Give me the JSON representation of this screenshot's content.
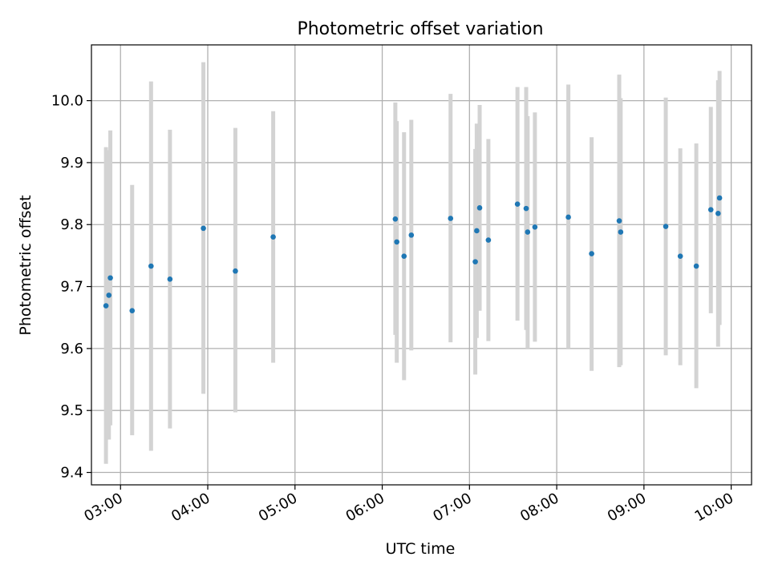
{
  "chart_data": {
    "type": "scatter",
    "title": "Photometric offset variation",
    "xlabel": "UTC time",
    "ylabel": "Photometric offset",
    "xlim": [
      "02:40",
      "10:14"
    ],
    "ylim": [
      9.38,
      10.09
    ],
    "x_ticks": [
      "03:00",
      "04:00",
      "05:00",
      "06:00",
      "07:00",
      "08:00",
      "09:00",
      "10:00"
    ],
    "y_ticks": [
      "9.4",
      "9.5",
      "9.6",
      "9.7",
      "9.8",
      "9.9",
      "10.0"
    ],
    "grid": true,
    "colors": {
      "point": "#1f77b4",
      "errorbar": "#d3d3d3",
      "grid": "#b0b0b0"
    },
    "points": [
      {
        "x": "02:50",
        "y": 9.669,
        "ylo": 9.414,
        "yhi": 9.925
      },
      {
        "x": "02:52",
        "y": 9.686,
        "ylo": 9.453,
        "yhi": 9.92
      },
      {
        "x": "02:53",
        "y": 9.714,
        "ylo": 9.476,
        "yhi": 9.952
      },
      {
        "x": "03:08",
        "y": 9.661,
        "ylo": 9.46,
        "yhi": 9.864
      },
      {
        "x": "03:21",
        "y": 9.733,
        "ylo": 9.435,
        "yhi": 10.031
      },
      {
        "x": "03:34",
        "y": 9.712,
        "ylo": 9.471,
        "yhi": 9.953
      },
      {
        "x": "03:57",
        "y": 9.794,
        "ylo": 9.527,
        "yhi": 10.062
      },
      {
        "x": "04:19",
        "y": 9.725,
        "ylo": 9.497,
        "yhi": 9.956
      },
      {
        "x": "04:45",
        "y": 9.78,
        "ylo": 9.577,
        "yhi": 9.983
      },
      {
        "x": "06:09",
        "y": 9.809,
        "ylo": 9.622,
        "yhi": 9.997
      },
      {
        "x": "06:10",
        "y": 9.772,
        "ylo": 9.577,
        "yhi": 9.967
      },
      {
        "x": "06:15",
        "y": 9.749,
        "ylo": 9.549,
        "yhi": 9.949
      },
      {
        "x": "06:20",
        "y": 9.783,
        "ylo": 9.597,
        "yhi": 9.969
      },
      {
        "x": "06:47",
        "y": 9.81,
        "ylo": 9.61,
        "yhi": 10.011
      },
      {
        "x": "07:04",
        "y": 9.74,
        "ylo": 9.558,
        "yhi": 9.922
      },
      {
        "x": "07:05",
        "y": 9.79,
        "ylo": 9.617,
        "yhi": 9.963
      },
      {
        "x": "07:07",
        "y": 9.827,
        "ylo": 9.661,
        "yhi": 9.993
      },
      {
        "x": "07:13",
        "y": 9.775,
        "ylo": 9.612,
        "yhi": 9.938
      },
      {
        "x": "07:33",
        "y": 9.833,
        "ylo": 9.645,
        "yhi": 10.022
      },
      {
        "x": "07:39",
        "y": 9.826,
        "ylo": 9.63,
        "yhi": 10.022
      },
      {
        "x": "07:40",
        "y": 9.788,
        "ylo": 9.6,
        "yhi": 9.975
      },
      {
        "x": "07:45",
        "y": 9.796,
        "ylo": 9.611,
        "yhi": 9.981
      },
      {
        "x": "08:08",
        "y": 9.812,
        "ylo": 9.6,
        "yhi": 10.026
      },
      {
        "x": "08:24",
        "y": 9.753,
        "ylo": 9.564,
        "yhi": 9.941
      },
      {
        "x": "08:43",
        "y": 9.806,
        "ylo": 9.57,
        "yhi": 10.042
      },
      {
        "x": "08:44",
        "y": 9.788,
        "ylo": 9.573,
        "yhi": 10.004
      },
      {
        "x": "09:15",
        "y": 9.797,
        "ylo": 9.589,
        "yhi": 10.005
      },
      {
        "x": "09:25",
        "y": 9.749,
        "ylo": 9.573,
        "yhi": 9.923
      },
      {
        "x": "09:36",
        "y": 9.733,
        "ylo": 9.536,
        "yhi": 9.931
      },
      {
        "x": "09:46",
        "y": 9.824,
        "ylo": 9.657,
        "yhi": 9.99
      },
      {
        "x": "09:51",
        "y": 9.818,
        "ylo": 9.603,
        "yhi": 10.033
      },
      {
        "x": "09:52",
        "y": 9.843,
        "ylo": 9.638,
        "yhi": 10.048
      }
    ]
  }
}
